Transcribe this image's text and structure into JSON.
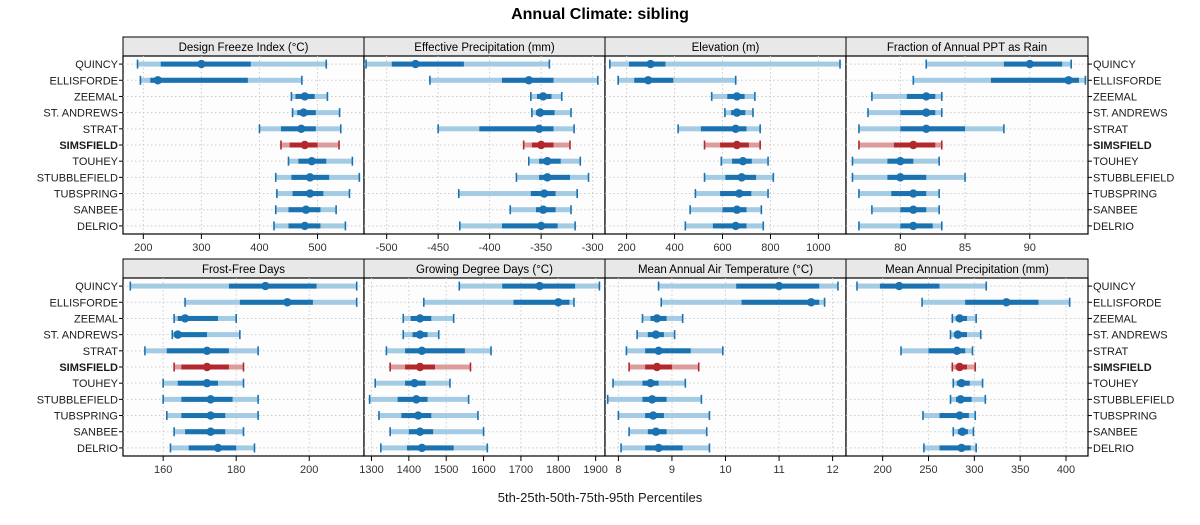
{
  "title": "Annual Climate: sibling",
  "caption": "5th-25th-50th-75th-95th Percentiles",
  "percentile_labels": [
    "5th",
    "25th",
    "50th",
    "75th",
    "95th"
  ],
  "highlight_site": "SIMSFIELD",
  "sites": [
    "QUINCY",
    "ELLISFORDE",
    "ZEEMAL",
    "ST. ANDREWS",
    "STRAT",
    "SIMSFIELD",
    "TOUHEY",
    "STUBBLEFIELD",
    "TUBSPRING",
    "SANBEE",
    "DELRIO"
  ],
  "colors": {
    "normal_dark": "#1a72b0",
    "normal_light": "#a3cbe4",
    "highlight_dark": "#b1282d",
    "highlight_light": "#dc9c9c",
    "strip_bg": "#e8e8e8",
    "plot_bg": "#fdfdfd",
    "grid": "#cdcdcd",
    "border": "#000000",
    "tick_label": "#333333",
    "site_label": "#1a1a1a"
  },
  "chart_data": [
    {
      "type": "errorbar-dot",
      "id": "design-freeze-index",
      "title": "Design Freeze Index (°C)",
      "xlim": [
        165,
        580
      ],
      "ticks": [
        200,
        300,
        400,
        500
      ],
      "series": [
        [
          190,
          230,
          300,
          385,
          515
        ],
        [
          195,
          212,
          225,
          380,
          473
        ],
        [
          455,
          462,
          478,
          495,
          517
        ],
        [
          457,
          465,
          476,
          497,
          538
        ],
        [
          400,
          437,
          472,
          497,
          540
        ],
        [
          437,
          452,
          478,
          500,
          537
        ],
        [
          450,
          467,
          490,
          515,
          560
        ],
        [
          428,
          455,
          487,
          520,
          572
        ],
        [
          430,
          457,
          487,
          510,
          555
        ],
        [
          428,
          450,
          480,
          505,
          532
        ],
        [
          425,
          450,
          478,
          505,
          548
        ]
      ]
    },
    {
      "type": "errorbar-dot",
      "id": "effective-precipitation",
      "title": "Effective Precipitation (mm)",
      "xlim": [
        -522,
        -288
      ],
      "ticks": [
        -500,
        -450,
        -400,
        -350,
        -300
      ],
      "series": [
        [
          -520,
          -495,
          -472,
          -425,
          -342
        ],
        [
          -458,
          -388,
          -362,
          -338,
          -295
        ],
        [
          -360,
          -354,
          -348,
          -340,
          -330
        ],
        [
          -359,
          -355,
          -351,
          -337,
          -321
        ],
        [
          -450,
          -410,
          -352,
          -338,
          -318
        ],
        [
          -367,
          -359,
          -350,
          -338,
          -322
        ],
        [
          -362,
          -352,
          -344,
          -331,
          -312
        ],
        [
          -374,
          -352,
          -344,
          -322,
          -304
        ],
        [
          -430,
          -360,
          -347,
          -336,
          -315
        ],
        [
          -380,
          -355,
          -348,
          -336,
          -321
        ],
        [
          -429,
          -388,
          -350,
          -334,
          -317
        ]
      ]
    },
    {
      "type": "errorbar-dot",
      "id": "elevation",
      "title": "Elevation (m)",
      "xlim": [
        110,
        1115
      ],
      "ticks": [
        200,
        400,
        600,
        800,
        1000
      ],
      "series": [
        [
          130,
          210,
          300,
          362,
          1090
        ],
        [
          165,
          232,
          290,
          395,
          655
        ],
        [
          555,
          620,
          660,
          692,
          735
        ],
        [
          610,
          636,
          660,
          695,
          727
        ],
        [
          415,
          510,
          655,
          700,
          757
        ],
        [
          525,
          590,
          660,
          710,
          757
        ],
        [
          595,
          640,
          685,
          722,
          790
        ],
        [
          525,
          612,
          680,
          740,
          812
        ],
        [
          487,
          590,
          670,
          720,
          790
        ],
        [
          465,
          600,
          660,
          700,
          762
        ],
        [
          445,
          560,
          655,
          700,
          770
        ]
      ]
    },
    {
      "type": "errorbar-dot",
      "id": "fraction-annual-ppt-rain",
      "title": "Fraction of Annual PPT as Rain",
      "xlim": [
        75.8,
        94.5
      ],
      "ticks": [
        80,
        85,
        90
      ],
      "series": [
        [
          82.0,
          88.0,
          90.0,
          92.5,
          93.2
        ],
        [
          81.0,
          87.0,
          93.0,
          93.8,
          94.3
        ],
        [
          77.8,
          80.5,
          82.0,
          82.7,
          83.2
        ],
        [
          77.5,
          80.0,
          82.0,
          82.7,
          83.2
        ],
        [
          76.8,
          80.0,
          82.0,
          85.0,
          88.0
        ],
        [
          76.8,
          79.5,
          81.0,
          82.7,
          83.2
        ],
        [
          76.3,
          79.0,
          80.0,
          81.0,
          83.0
        ],
        [
          76.3,
          79.0,
          80.0,
          82.0,
          85.0
        ],
        [
          76.8,
          79.3,
          81.0,
          82.0,
          83.0
        ],
        [
          77.8,
          80.0,
          81.0,
          82.0,
          83.0
        ],
        [
          76.8,
          80.0,
          81.0,
          82.5,
          83.2
        ]
      ]
    },
    {
      "type": "errorbar-dot",
      "id": "frost-free-days",
      "title": "Frost-Free Days",
      "xlim": [
        149,
        215
      ],
      "ticks": [
        160,
        180,
        200
      ],
      "series": [
        [
          151,
          178,
          188,
          202,
          213
        ],
        [
          166,
          181,
          194,
          201,
          213
        ],
        [
          163,
          164,
          166,
          175,
          180
        ],
        [
          162.5,
          163.5,
          164,
          172,
          181
        ],
        [
          155,
          161,
          172,
          178,
          186
        ],
        [
          163,
          165,
          172,
          178,
          182
        ],
        [
          160,
          164,
          172,
          175,
          182
        ],
        [
          160,
          165,
          173,
          179,
          186
        ],
        [
          161,
          165,
          173,
          177,
          186
        ],
        [
          163,
          166,
          173,
          177,
          182
        ],
        [
          162,
          167,
          175,
          180,
          185
        ]
      ]
    },
    {
      "type": "errorbar-dot",
      "id": "growing-degree-days",
      "title": "Growing Degree Days (°C)",
      "xlim": [
        1280,
        1925
      ],
      "ticks": [
        1300,
        1400,
        1500,
        1600,
        1700,
        1800,
        1900
      ],
      "series": [
        [
          1535,
          1650,
          1750,
          1845,
          1910
        ],
        [
          1440,
          1680,
          1800,
          1830,
          1842
        ],
        [
          1385,
          1405,
          1430,
          1460,
          1520
        ],
        [
          1385,
          1410,
          1430,
          1450,
          1480
        ],
        [
          1340,
          1390,
          1435,
          1550,
          1620
        ],
        [
          1350,
          1390,
          1430,
          1470,
          1565
        ],
        [
          1310,
          1390,
          1415,
          1445,
          1510
        ],
        [
          1295,
          1370,
          1420,
          1450,
          1560
        ],
        [
          1320,
          1380,
          1425,
          1460,
          1585
        ],
        [
          1350,
          1400,
          1430,
          1465,
          1600
        ],
        [
          1325,
          1395,
          1435,
          1520,
          1610
        ]
      ]
    },
    {
      "type": "errorbar-dot",
      "id": "mean-annual-air-temperature",
      "title": "Mean Annual Air Temperature (°C)",
      "xlim": [
        7.75,
        12.25
      ],
      "ticks": [
        8,
        9,
        10,
        11,
        12
      ],
      "series": [
        [
          8.75,
          10.2,
          11.0,
          11.75,
          12.1
        ],
        [
          8.8,
          10.3,
          11.6,
          11.75,
          11.85
        ],
        [
          8.45,
          8.6,
          8.72,
          8.9,
          9.2
        ],
        [
          8.35,
          8.55,
          8.7,
          8.85,
          9.05
        ],
        [
          8.15,
          8.5,
          8.75,
          9.35,
          9.95
        ],
        [
          8.2,
          8.5,
          8.72,
          9.0,
          9.5
        ],
        [
          7.9,
          8.45,
          8.6,
          8.75,
          9.25
        ],
        [
          7.8,
          8.45,
          8.63,
          8.9,
          9.55
        ],
        [
          8.0,
          8.5,
          8.65,
          8.85,
          9.7
        ],
        [
          8.2,
          8.55,
          8.7,
          8.9,
          9.65
        ],
        [
          8.05,
          8.5,
          8.75,
          9.2,
          9.7
        ]
      ]
    },
    {
      "type": "errorbar-dot",
      "id": "mean-annual-precipitation",
      "title": "Mean Annual Precipitation (mm)",
      "xlim": [
        160,
        424
      ],
      "ticks": [
        200,
        250,
        300,
        350,
        400
      ],
      "series": [
        [
          172,
          197,
          218,
          262,
          313
        ],
        [
          243,
          290,
          335,
          370,
          404
        ],
        [
          276,
          280,
          284,
          292,
          302
        ],
        [
          274,
          278,
          282,
          292,
          307
        ],
        [
          220,
          250,
          281,
          290,
          298
        ],
        [
          276,
          280,
          284,
          292,
          301
        ],
        [
          277,
          281,
          286,
          295,
          309
        ],
        [
          274,
          280,
          285,
          297,
          312
        ],
        [
          244,
          262,
          284,
          294,
          301
        ],
        [
          277,
          282,
          287,
          293,
          299
        ],
        [
          245,
          262,
          286,
          296,
          302
        ]
      ]
    }
  ]
}
